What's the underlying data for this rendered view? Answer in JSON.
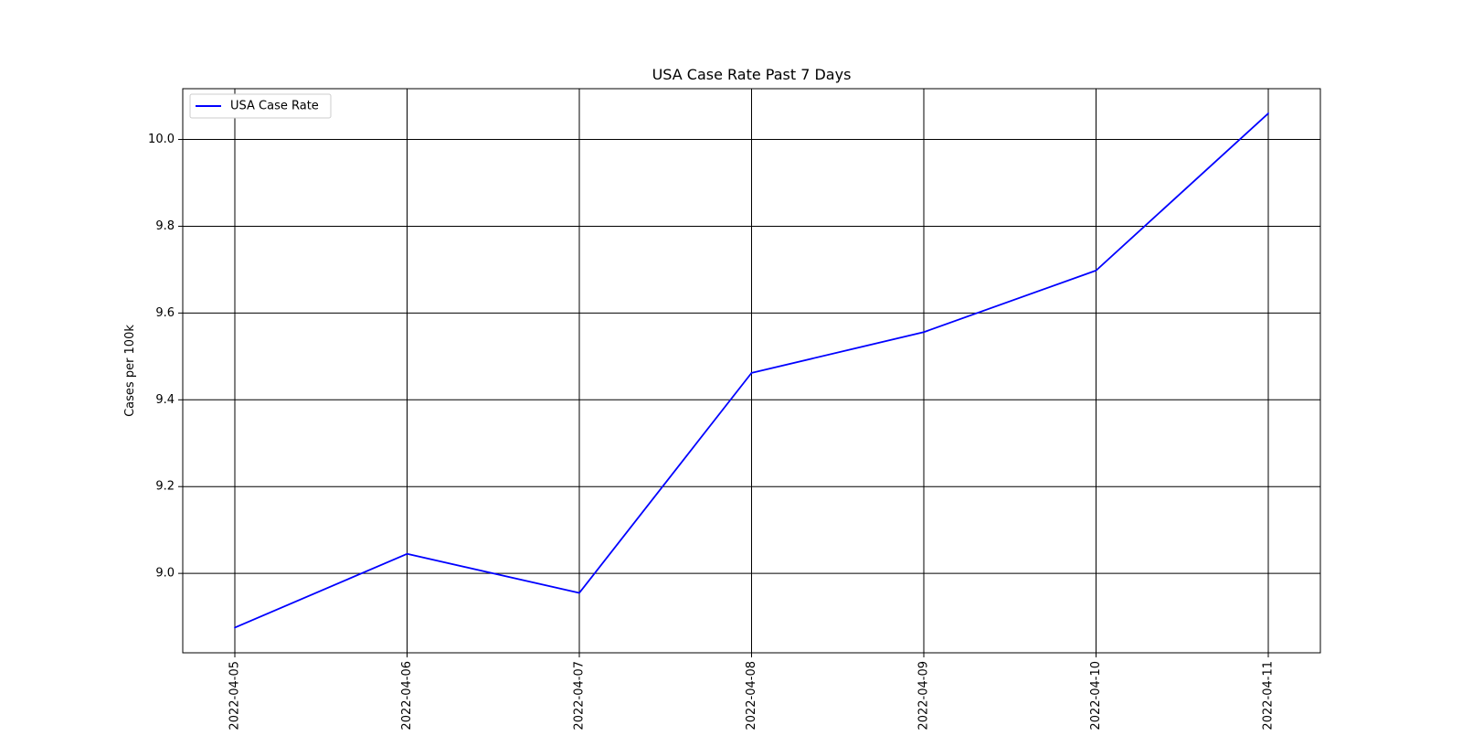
{
  "chart_data": {
    "type": "line",
    "title": "USA Case Rate Past 7 Days",
    "xlabel": "",
    "ylabel": "Cases per 100k",
    "x": [
      "2022-04-05",
      "2022-04-06",
      "2022-04-07",
      "2022-04-08",
      "2022-04-09",
      "2022-04-10",
      "2022-04-11"
    ],
    "series": [
      {
        "name": "USA Case Rate",
        "color": "#0000ff",
        "values": [
          8.875,
          9.045,
          8.955,
          9.462,
          9.556,
          9.698,
          10.06
        ]
      }
    ],
    "ylim": [
      8.817,
      10.117
    ],
    "yticks": [
      9.0,
      9.2,
      9.4,
      9.6,
      9.8,
      10.0
    ],
    "ytick_labels": [
      "9.0",
      "9.2",
      "9.4",
      "9.6",
      "9.8",
      "10.0"
    ],
    "grid": true,
    "grid_color": "#000000",
    "legend_position": "upper-left"
  }
}
